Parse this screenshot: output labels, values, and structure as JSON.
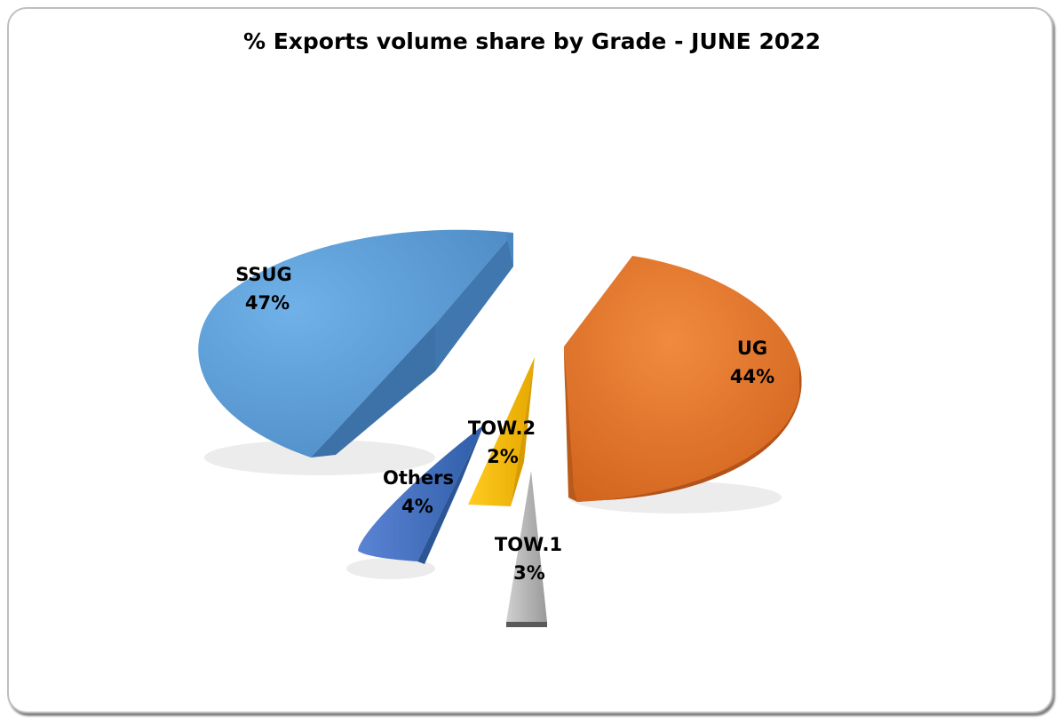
{
  "chart_data": {
    "type": "pie",
    "title": "% Exports volume share by Grade - JUNE 2022",
    "slices": [
      {
        "label": "UG",
        "percent_label": "44%",
        "value": 44,
        "color": "#e3752e"
      },
      {
        "label": "TOW.1",
        "percent_label": "3%",
        "value": 3,
        "color": "#a9a9a9"
      },
      {
        "label": "Others",
        "percent_label": "4%",
        "value": 4,
        "color": "#4472c4"
      },
      {
        "label": "SSUG",
        "percent_label": "47%",
        "value": 47,
        "color": "#5b9bd5"
      },
      {
        "label": "TOW.2",
        "percent_label": "2%",
        "value": 2,
        "color": "#ffc000"
      }
    ]
  }
}
